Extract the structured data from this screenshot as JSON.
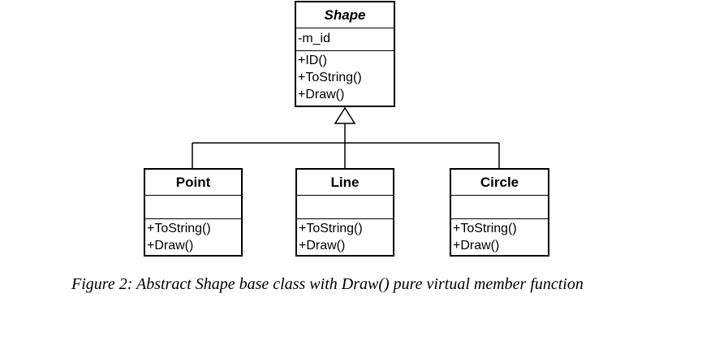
{
  "classes": {
    "shape": {
      "name": "Shape",
      "attributes": [
        "-m_id"
      ],
      "operations": [
        "+ID()",
        "+ToString()",
        "+Draw()"
      ]
    },
    "point": {
      "name": "Point",
      "attributes": [],
      "operations": [
        "+ToString()",
        "+Draw()"
      ]
    },
    "line": {
      "name": "Line",
      "attributes": [],
      "operations": [
        "+ToString()",
        "+Draw()"
      ]
    },
    "circle": {
      "name": "Circle",
      "attributes": [],
      "operations": [
        "+ToString()",
        "+Draw()"
      ]
    }
  },
  "caption": "Figure 2: Abstract Shape base class with Draw() pure virtual member function"
}
